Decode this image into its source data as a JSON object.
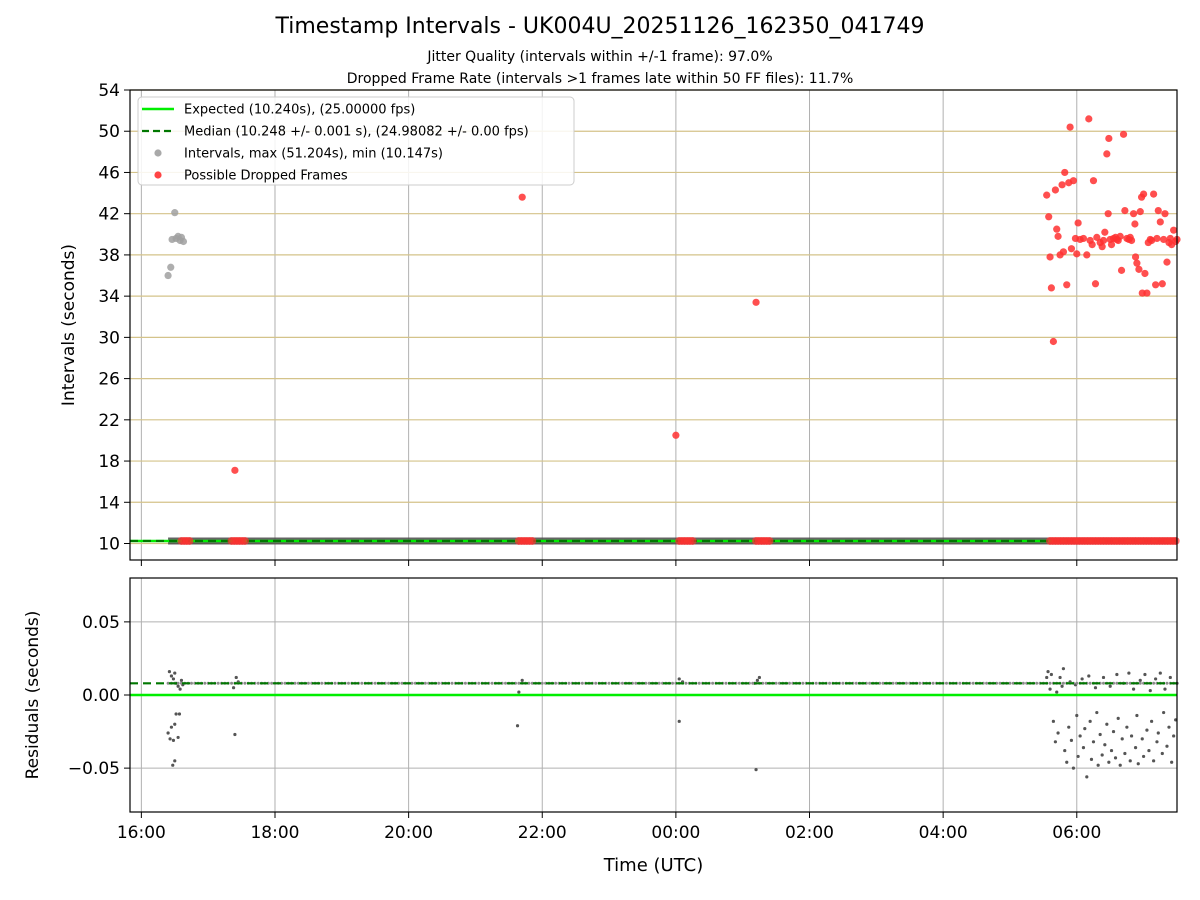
{
  "chart_data": [
    {
      "type": "scatter",
      "title": "Timestamp Intervals - UK004U_20251126_162350_041749",
      "subtitle_lines": [
        "Jitter Quality (intervals within +/-1 frame): 97.0%",
        "Dropped Frame Rate (intervals >1 frames late within 50 FF files): 11.7%"
      ],
      "ylabel": "Intervals (seconds)",
      "xlabel": "",
      "x_units": "hours since 16:00 UTC (2025-11-26)",
      "xlim": [
        -0.17,
        15.5
      ],
      "ylim": [
        8.4,
        54
      ],
      "yticks": [
        10,
        14,
        18,
        22,
        26,
        30,
        34,
        38,
        42,
        46,
        50,
        54
      ],
      "y_grid_color": "#d4c38a",
      "x_grid": true,
      "legend_position": "top-left",
      "legend": [
        {
          "label": "Expected (10.240s), (25.00000 fps)",
          "style": "line",
          "color": "#00ee00"
        },
        {
          "label": "Median (10.248 +/- 0.001 s), (24.98082 +/- 0.00 fps)",
          "style": "dashed",
          "color": "#007700"
        },
        {
          "label": "Intervals, max (51.204s), min (10.147s)",
          "style": "point",
          "color": "#a0a0a0"
        },
        {
          "label": "Possible Dropped Frames",
          "style": "point",
          "color": "#ff3030"
        }
      ],
      "expected_value": 10.24,
      "median_value": 10.248,
      "baseline_span": [
        0.4,
        15.5
      ],
      "series": [
        {
          "style": "grey-points",
          "points": [
            [
              0.4,
              36.0
            ],
            [
              0.44,
              36.8
            ],
            [
              0.46,
              39.5
            ],
            [
              0.5,
              42.1
            ],
            [
              0.52,
              39.6
            ],
            [
              0.55,
              39.8
            ],
            [
              0.58,
              39.4
            ],
            [
              0.6,
              39.7
            ],
            [
              0.63,
              39.3
            ]
          ]
        },
        {
          "style": "red-points",
          "points": [
            [
              1.4,
              17.1
            ],
            [
              5.7,
              43.6
            ],
            [
              8.0,
              20.5
            ],
            [
              9.2,
              33.4
            ],
            [
              13.55,
              43.8
            ],
            [
              13.58,
              41.7
            ],
            [
              13.6,
              37.8
            ],
            [
              13.62,
              34.8
            ],
            [
              13.65,
              29.6
            ],
            [
              13.68,
              44.3
            ],
            [
              13.7,
              40.5
            ],
            [
              13.72,
              39.8
            ],
            [
              13.75,
              38.0
            ],
            [
              13.78,
              44.8
            ],
            [
              13.8,
              38.3
            ],
            [
              13.82,
              46.0
            ],
            [
              13.85,
              35.1
            ],
            [
              13.88,
              45.0
            ],
            [
              13.9,
              50.4
            ],
            [
              13.92,
              38.6
            ],
            [
              13.95,
              45.2
            ],
            [
              13.98,
              39.6
            ],
            [
              14.0,
              38.1
            ],
            [
              14.02,
              41.1
            ],
            [
              14.05,
              39.5
            ],
            [
              14.1,
              39.6
            ],
            [
              14.15,
              38.0
            ],
            [
              14.18,
              51.2
            ],
            [
              14.2,
              39.4
            ],
            [
              14.23,
              39.0
            ],
            [
              14.25,
              45.2
            ],
            [
              14.28,
              35.2
            ],
            [
              14.3,
              39.7
            ],
            [
              14.35,
              39.2
            ],
            [
              14.38,
              38.8
            ],
            [
              14.4,
              39.4
            ],
            [
              14.42,
              40.2
            ],
            [
              14.45,
              47.8
            ],
            [
              14.47,
              42.0
            ],
            [
              14.48,
              49.3
            ],
            [
              14.5,
              39.5
            ],
            [
              14.52,
              39.0
            ],
            [
              14.55,
              39.6
            ],
            [
              14.58,
              39.7
            ],
            [
              14.6,
              39.5
            ],
            [
              14.62,
              39.4
            ],
            [
              14.65,
              39.8
            ],
            [
              14.67,
              36.5
            ],
            [
              14.7,
              49.7
            ],
            [
              14.72,
              42.3
            ],
            [
              14.75,
              39.6
            ],
            [
              14.78,
              39.5
            ],
            [
              14.8,
              39.7
            ],
            [
              14.82,
              39.4
            ],
            [
              14.85,
              42.0
            ],
            [
              14.87,
              41.0
            ],
            [
              14.88,
              37.8
            ],
            [
              14.9,
              37.2
            ],
            [
              14.93,
              36.6
            ],
            [
              14.95,
              42.2
            ],
            [
              14.97,
              43.6
            ],
            [
              14.98,
              34.3
            ],
            [
              15.0,
              43.9
            ],
            [
              15.02,
              36.2
            ],
            [
              15.05,
              34.3
            ],
            [
              15.07,
              39.2
            ],
            [
              15.1,
              39.5
            ],
            [
              15.12,
              39.4
            ],
            [
              15.15,
              43.9
            ],
            [
              15.18,
              35.1
            ],
            [
              15.2,
              39.6
            ],
            [
              15.22,
              42.3
            ],
            [
              15.25,
              41.2
            ],
            [
              15.28,
              35.2
            ],
            [
              15.3,
              39.5
            ],
            [
              15.32,
              42.0
            ],
            [
              15.35,
              37.3
            ],
            [
              15.38,
              39.2
            ],
            [
              15.4,
              39.6
            ],
            [
              15.42,
              39.0
            ],
            [
              15.45,
              40.4
            ],
            [
              15.48,
              39.3
            ],
            [
              15.5,
              39.5
            ]
          ]
        }
      ],
      "dropped_frame_clusters_at_baseline": [
        [
          0.6,
          0.75
        ],
        [
          1.35,
          1.55
        ],
        [
          5.65,
          5.85
        ],
        [
          8.05,
          8.25
        ],
        [
          9.2,
          9.4
        ],
        [
          13.6,
          15.5
        ]
      ]
    },
    {
      "type": "scatter",
      "title": "",
      "ylabel": "Residuals (seconds)",
      "xlabel": "Time (UTC)",
      "xlim": [
        -0.17,
        15.5
      ],
      "ylim": [
        -0.08,
        0.08
      ],
      "yticks": [
        0.05,
        0.0,
        -0.05
      ],
      "ytick_labels": [
        "0.05",
        "0.00",
        "−0.05"
      ],
      "xticks": [
        0,
        2,
        4,
        6,
        8,
        10,
        12,
        14
      ],
      "xtick_labels": [
        "16:00",
        "18:00",
        "20:00",
        "22:00",
        "00:00",
        "02:00",
        "04:00",
        "06:00"
      ],
      "expected_residual": 0.0,
      "median_residual": 0.008,
      "series": [
        {
          "style": "grey-dots",
          "points": [
            [
              0.42,
              0.016
            ],
            [
              0.45,
              0.013
            ],
            [
              0.48,
              0.011
            ],
            [
              0.5,
              0.015
            ],
            [
              0.52,
              0.008
            ],
            [
              0.55,
              0.006
            ],
            [
              0.58,
              0.004
            ],
            [
              0.6,
              0.01
            ],
            [
              0.62,
              0.007
            ],
            [
              0.4,
              -0.026
            ],
            [
              0.43,
              -0.03
            ],
            [
              0.45,
              -0.022
            ],
            [
              0.48,
              -0.031
            ],
            [
              0.5,
              -0.02
            ],
            [
              0.52,
              -0.013
            ],
            [
              0.55,
              -0.029
            ],
            [
              0.57,
              -0.013
            ],
            [
              0.47,
              -0.048
            ],
            [
              0.5,
              -0.045
            ],
            [
              1.4,
              -0.027
            ],
            [
              1.42,
              0.012
            ],
            [
              1.45,
              0.009
            ],
            [
              1.38,
              0.005
            ],
            [
              5.65,
              0.002
            ],
            [
              5.63,
              -0.021
            ],
            [
              5.7,
              0.01
            ],
            [
              8.05,
              0.011
            ],
            [
              8.05,
              -0.018
            ],
            [
              8.1,
              0.009
            ],
            [
              9.2,
              -0.051
            ],
            [
              9.22,
              0.01
            ],
            [
              9.25,
              0.012
            ],
            [
              9.18,
              0.008
            ],
            [
              13.55,
              0.012
            ],
            [
              13.57,
              0.016
            ],
            [
              13.6,
              0.004
            ],
            [
              13.62,
              0.014
            ],
            [
              13.65,
              -0.018
            ],
            [
              13.68,
              -0.032
            ],
            [
              13.7,
              0.002
            ],
            [
              13.72,
              -0.026
            ],
            [
              13.75,
              0.012
            ],
            [
              13.78,
              0.006
            ],
            [
              13.8,
              0.018
            ],
            [
              13.82,
              -0.038
            ],
            [
              13.85,
              -0.046
            ],
            [
              13.88,
              -0.022
            ],
            [
              13.9,
              0.009
            ],
            [
              13.92,
              -0.031
            ],
            [
              13.95,
              -0.05
            ],
            [
              13.98,
              0.007
            ],
            [
              14.0,
              -0.014
            ],
            [
              14.02,
              -0.042
            ],
            [
              14.05,
              -0.028
            ],
            [
              14.08,
              0.011
            ],
            [
              14.1,
              -0.036
            ],
            [
              14.12,
              -0.023
            ],
            [
              14.15,
              -0.056
            ],
            [
              14.18,
              0.013
            ],
            [
              14.2,
              -0.018
            ],
            [
              14.22,
              -0.044
            ],
            [
              14.25,
              -0.032
            ],
            [
              14.28,
              0.005
            ],
            [
              14.3,
              -0.012
            ],
            [
              14.32,
              -0.048
            ],
            [
              14.35,
              -0.027
            ],
            [
              14.38,
              -0.041
            ],
            [
              14.4,
              0.012
            ],
            [
              14.42,
              -0.034
            ],
            [
              14.45,
              -0.02
            ],
            [
              14.48,
              -0.046
            ],
            [
              14.5,
              0.006
            ],
            [
              14.52,
              -0.038
            ],
            [
              14.55,
              -0.025
            ],
            [
              14.58,
              -0.043
            ],
            [
              14.6,
              0.014
            ],
            [
              14.62,
              -0.016
            ],
            [
              14.65,
              -0.048
            ],
            [
              14.68,
              -0.03
            ],
            [
              14.7,
              0.008
            ],
            [
              14.72,
              -0.04
            ],
            [
              14.75,
              -0.022
            ],
            [
              14.78,
              0.015
            ],
            [
              14.8,
              -0.045
            ],
            [
              14.82,
              -0.028
            ],
            [
              14.85,
              0.004
            ],
            [
              14.88,
              -0.036
            ],
            [
              14.9,
              -0.014
            ],
            [
              14.92,
              -0.047
            ],
            [
              14.95,
              0.01
            ],
            [
              14.98,
              -0.03
            ],
            [
              15.0,
              -0.042
            ],
            [
              15.02,
              0.014
            ],
            [
              15.05,
              -0.024
            ],
            [
              15.08,
              -0.038
            ],
            [
              15.1,
              0.003
            ],
            [
              15.12,
              -0.018
            ],
            [
              15.15,
              -0.045
            ],
            [
              15.18,
              0.011
            ],
            [
              15.2,
              -0.032
            ],
            [
              15.22,
              -0.026
            ],
            [
              15.25,
              0.015
            ],
            [
              15.28,
              -0.04
            ],
            [
              15.3,
              -0.012
            ],
            [
              15.32,
              0.004
            ],
            [
              15.35,
              -0.035
            ],
            [
              15.38,
              -0.022
            ],
            [
              15.4,
              0.012
            ],
            [
              15.42,
              -0.046
            ],
            [
              15.45,
              -0.028
            ],
            [
              15.48,
              -0.017
            ],
            [
              15.5,
              0.008
            ]
          ]
        }
      ]
    }
  ]
}
